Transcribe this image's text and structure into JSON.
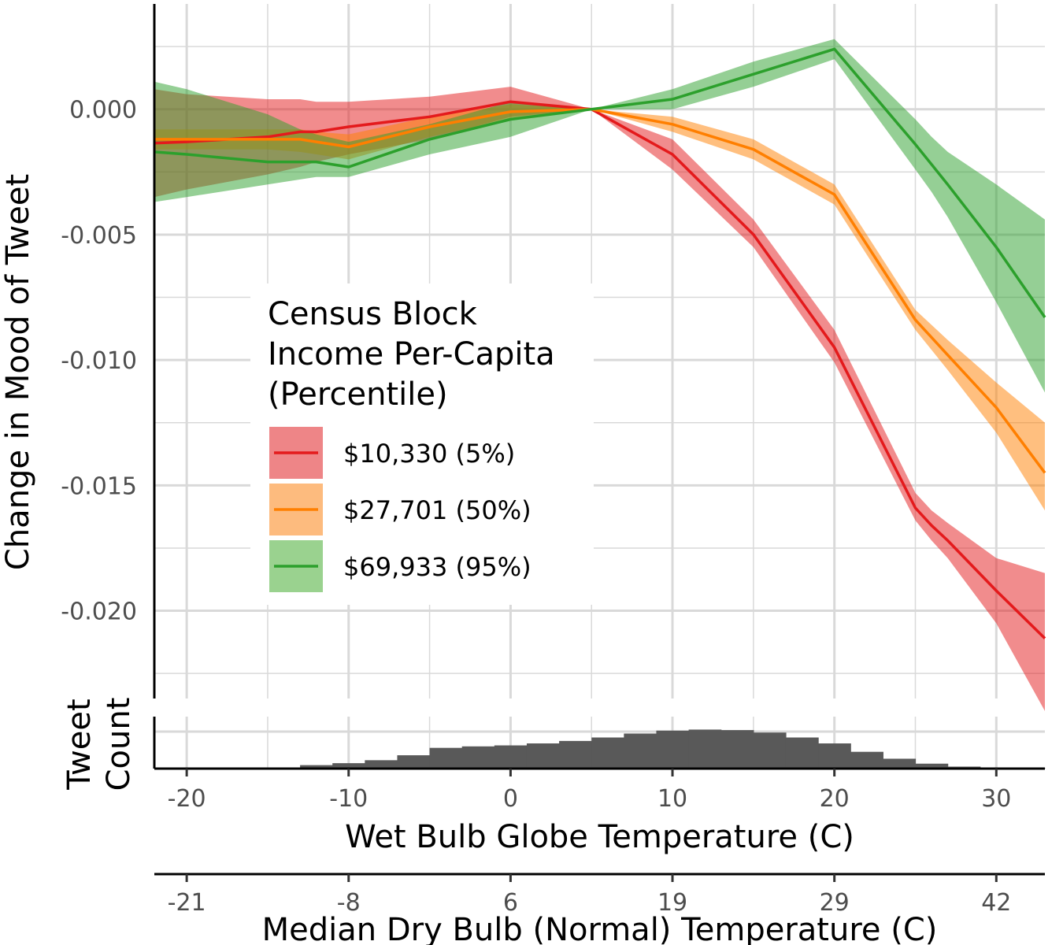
{
  "chart_data": {
    "type": "line",
    "ylabel": "Change in Mood of Tweet",
    "xlabel": "Wet Bulb Globe Temperature (C)",
    "xlabel_secondary": "Median Dry Bulb (Normal) Temperature (C)",
    "xlim": [
      -22,
      33
    ],
    "ylim": [
      -0.0235,
      0.0042
    ],
    "y_ticks": [
      0.0,
      -0.005,
      -0.01,
      -0.015,
      -0.02
    ],
    "y_tick_labels": [
      "0.000",
      "-0.005",
      "-0.010",
      "-0.015",
      "-0.020"
    ],
    "x_ticks": [
      -20,
      -10,
      0,
      10,
      20,
      30
    ],
    "x_tick_labels": [
      "-20",
      "-10",
      "0",
      "10",
      "20",
      "30"
    ],
    "x_minor_ticks": [
      -15,
      -5,
      5,
      15,
      25
    ],
    "secondary_x_ticks": [
      -20,
      -10,
      0,
      10,
      20,
      30
    ],
    "secondary_x_tick_labels": [
      "-21",
      "-8",
      "6",
      "19",
      "29",
      "42"
    ],
    "grid": true,
    "legend": {
      "title": [
        "Census Block",
        "Income Per-Capita",
        "(Percentile)"
      ],
      "placement": "center-left"
    },
    "x": [
      -22,
      -20,
      -15,
      -13,
      -12,
      -10,
      -5,
      0,
      5,
      10,
      15,
      20,
      25,
      26,
      27,
      30,
      33
    ],
    "series": [
      {
        "name": "$10,330 (5%)",
        "color": "#e41a1c",
        "fill": "#ee8587",
        "values": [
          -0.00135,
          -0.0013,
          -0.0011,
          -0.0009,
          -0.0009,
          -0.0007,
          -0.0003,
          0.0003,
          0.0,
          -0.0018,
          -0.005,
          -0.0095,
          -0.0159,
          -0.0166,
          -0.0172,
          -0.0192,
          -0.0211
        ],
        "lower": [
          -0.0035,
          -0.0032,
          -0.0026,
          -0.0023,
          -0.0021,
          -0.0018,
          -0.0012,
          -0.0003,
          0.0,
          -0.0024,
          -0.0055,
          -0.0101,
          -0.0164,
          -0.0172,
          -0.0179,
          -0.0205,
          -0.024
        ],
        "upper": [
          0.0008,
          0.0006,
          0.0004,
          0.0004,
          0.0003,
          0.0003,
          0.0005,
          0.0009,
          0.0,
          -0.0012,
          -0.0044,
          -0.0088,
          -0.0153,
          -0.016,
          -0.0165,
          -0.0179,
          -0.0185
        ]
      },
      {
        "name": "$27,701 (50%)",
        "color": "#ff7f00",
        "fill": "#fdbb7e",
        "values": [
          -0.0012,
          -0.0012,
          -0.0012,
          -0.0012,
          -0.0013,
          -0.0015,
          -0.0007,
          -0.0001,
          0.0,
          -0.0006,
          -0.0016,
          -0.0034,
          -0.0084,
          -0.0091,
          -0.0098,
          -0.0119,
          -0.0145
        ],
        "lower": [
          -0.0016,
          -0.0016,
          -0.0016,
          -0.0017,
          -0.0018,
          -0.002,
          -0.0011,
          -0.0004,
          0.0,
          -0.0009,
          -0.002,
          -0.0038,
          -0.0088,
          -0.0096,
          -0.0104,
          -0.0129,
          -0.016
        ],
        "upper": [
          -0.0008,
          -0.0008,
          -0.0008,
          -0.0008,
          -0.0009,
          -0.001,
          -0.0003,
          0.0002,
          0.0,
          -0.0003,
          -0.0012,
          -0.003,
          -0.008,
          -0.0086,
          -0.0092,
          -0.0109,
          -0.0125
        ]
      },
      {
        "name": "$69,933 (95%)",
        "color": "#2ca02c",
        "fill": "#9ad28f",
        "values": [
          -0.0017,
          -0.0018,
          -0.0021,
          -0.0021,
          -0.0021,
          -0.0023,
          -0.0012,
          -0.0004,
          0.0,
          0.0004,
          0.0014,
          0.0024,
          -0.0014,
          -0.0022,
          -0.003,
          -0.0055,
          -0.0083
        ],
        "lower": [
          -0.0037,
          -0.0035,
          -0.003,
          -0.0028,
          -0.0027,
          -0.0027,
          -0.0018,
          -0.0011,
          0.0,
          0.0,
          0.0009,
          0.002,
          -0.0024,
          -0.0033,
          -0.0043,
          -0.0077,
          -0.0113
        ],
        "upper": [
          0.0011,
          0.0008,
          -0.0002,
          -0.0008,
          -0.001,
          -0.0013,
          -0.0006,
          0.0003,
          0.0,
          0.0008,
          0.0019,
          0.0028,
          -0.0004,
          -0.0011,
          -0.0017,
          -0.003,
          -0.0044
        ]
      }
    ],
    "histogram": {
      "ylabel": [
        "Tweet",
        "Count"
      ],
      "color": "#595959",
      "bins": [
        {
          "x0": -22,
          "x1": -15,
          "count": 0.0
        },
        {
          "x0": -15,
          "x1": -13,
          "count": 0.02
        },
        {
          "x0": -13,
          "x1": -11,
          "count": 0.07
        },
        {
          "x0": -11,
          "x1": -9,
          "count": 0.11
        },
        {
          "x0": -9,
          "x1": -7,
          "count": 0.17
        },
        {
          "x0": -7,
          "x1": -5,
          "count": 0.27
        },
        {
          "x0": -5,
          "x1": -3,
          "count": 0.42
        },
        {
          "x0": -3,
          "x1": -1,
          "count": 0.45
        },
        {
          "x0": -1,
          "x1": 1,
          "count": 0.47
        },
        {
          "x0": 1,
          "x1": 3,
          "count": 0.51
        },
        {
          "x0": 3,
          "x1": 5,
          "count": 0.56
        },
        {
          "x0": 5,
          "x1": 7,
          "count": 0.63
        },
        {
          "x0": 7,
          "x1": 9,
          "count": 0.71
        },
        {
          "x0": 9,
          "x1": 11,
          "count": 0.77
        },
        {
          "x0": 11,
          "x1": 13,
          "count": 0.79
        },
        {
          "x0": 13,
          "x1": 15,
          "count": 0.78
        },
        {
          "x0": 15,
          "x1": 17,
          "count": 0.73
        },
        {
          "x0": 17,
          "x1": 19,
          "count": 0.63
        },
        {
          "x0": 19,
          "x1": 21,
          "count": 0.51
        },
        {
          "x0": 21,
          "x1": 23,
          "count": 0.34
        },
        {
          "x0": 23,
          "x1": 25,
          "count": 0.2
        },
        {
          "x0": 25,
          "x1": 27,
          "count": 0.1
        },
        {
          "x0": 27,
          "x1": 29,
          "count": 0.04
        },
        {
          "x0": 29,
          "x1": 33,
          "count": 0.01
        }
      ]
    }
  }
}
